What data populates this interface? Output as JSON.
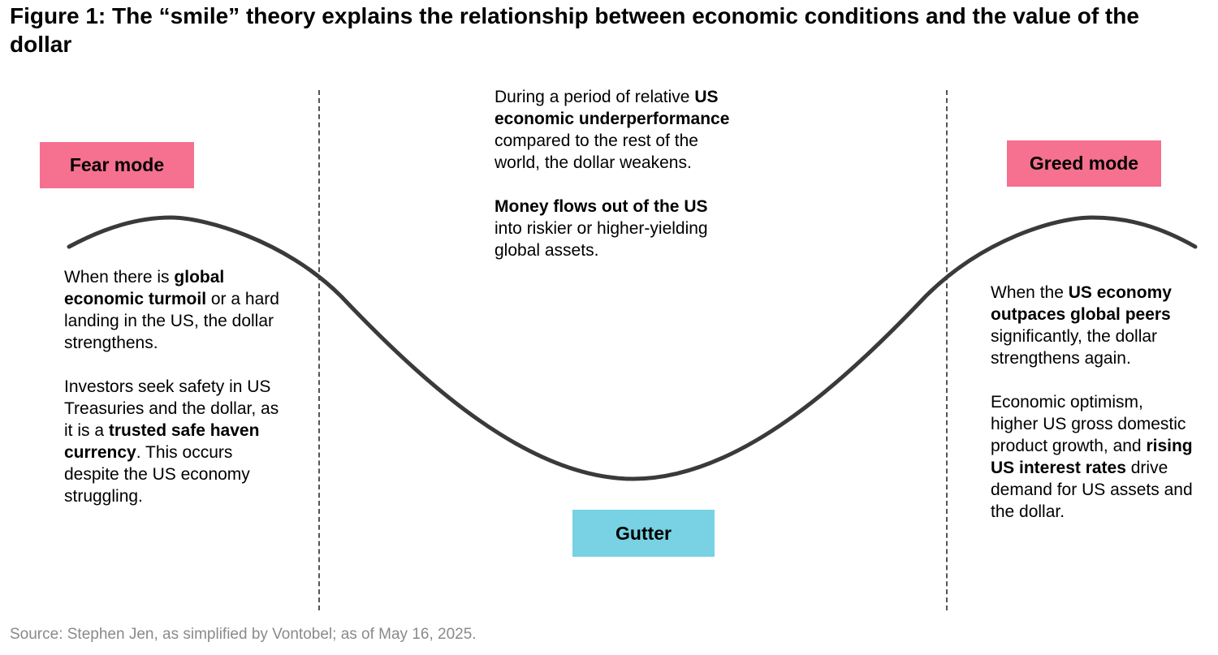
{
  "title": "Figure 1: The “smile” theory explains the relationship between economic conditions and the value of the dollar",
  "labels": {
    "fear": "Fear mode",
    "greed": "Greed mode",
    "gutter": "Gutter"
  },
  "colors": {
    "fear_box": "#f6708f",
    "greed_box": "#f6708f",
    "gutter_box": "#78d2e3",
    "curve": "#3a3a3a",
    "divider": "#555555",
    "source_text": "#8a8a8a"
  },
  "left_text": {
    "p1": [
      "When there is ",
      "global economic turmoil",
      " or a hard landing in the US, the dollar strengthens."
    ],
    "p2": [
      "Investors seek safety in US Treasuries and the dollar, as it is a ",
      "trusted safe haven currency",
      ". This occurs despite the US economy struggling."
    ]
  },
  "middle_text": {
    "p1": [
      "During a period of relative ",
      "US economic underperformance",
      " compared to the rest of the world, the dollar weakens."
    ],
    "p2": [
      "Money flows out of the US",
      " into riskier or higher-yielding global assets."
    ]
  },
  "right_text": {
    "p1": [
      "When the ",
      "US economy outpaces global peers",
      " significantly, the dollar strengthens again."
    ],
    "p2": [
      "Economic optimism, higher US gross domestic product growth, and ",
      "rising US interest rates",
      " drive demand for US assets and the dollar."
    ]
  },
  "source": "Source: Stephen Jen, as simplified by Vontobel; as of May 16, 2025."
}
